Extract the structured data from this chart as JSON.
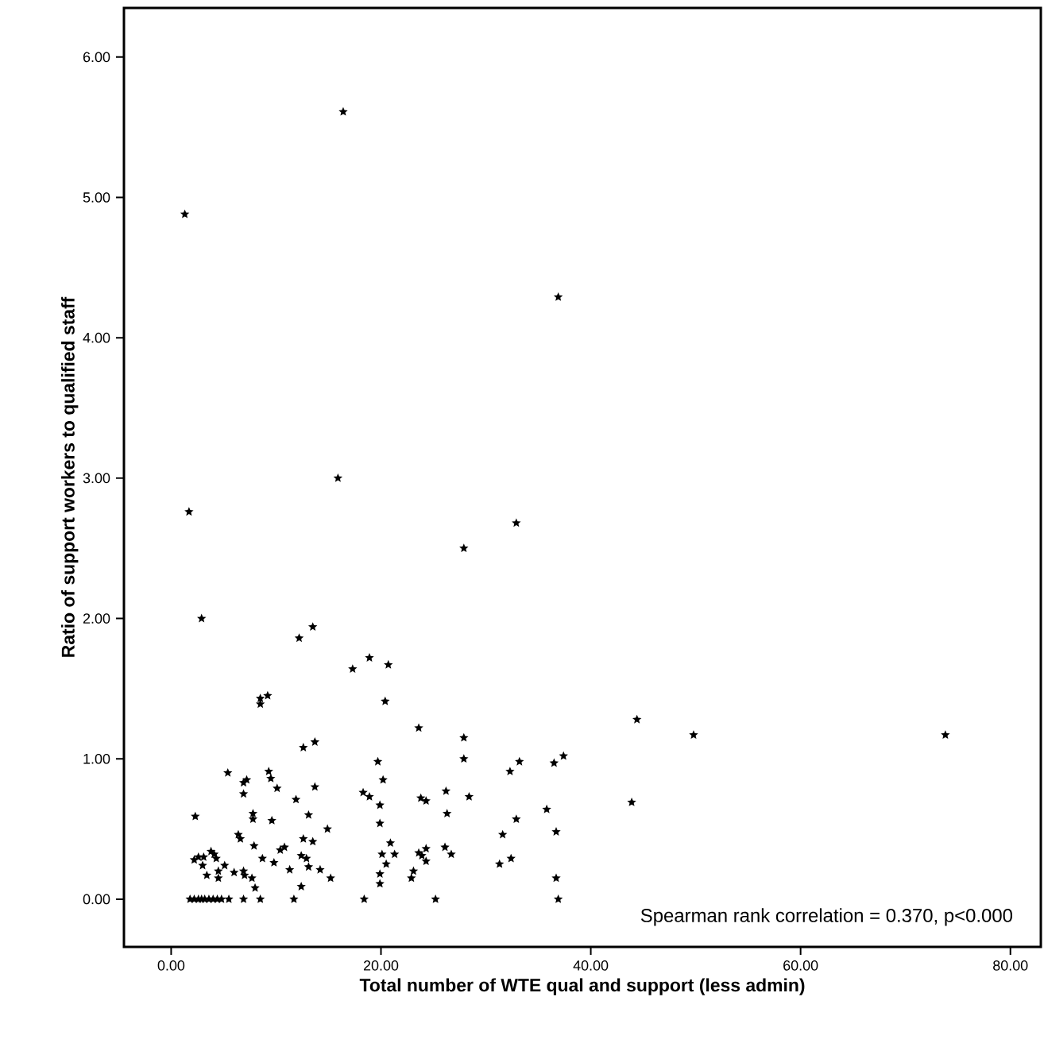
{
  "chart_data": {
    "type": "scatter",
    "xlabel": "Total number of WTE qual and support (less admin)",
    "ylabel": "Ratio of support workers to qualified staff",
    "annotations": [
      "Spearman rank correlation = 0.370, p<0.000"
    ],
    "marker": "star",
    "color": "#000000",
    "grid": false,
    "xlim": [
      -4.5,
      82.9
    ],
    "ylim": [
      -0.34,
      6.35
    ],
    "xticks": [
      {
        "value": 0,
        "label": "0.00"
      },
      {
        "value": 20,
        "label": "20.00"
      },
      {
        "value": 40,
        "label": "40.00"
      },
      {
        "value": 60,
        "label": "60.00"
      },
      {
        "value": 80,
        "label": "80.00"
      }
    ],
    "yticks": [
      {
        "value": 0,
        "label": "0.00"
      },
      {
        "value": 1,
        "label": "1.00"
      },
      {
        "value": 2,
        "label": "2.00"
      },
      {
        "value": 3,
        "label": "3.00"
      },
      {
        "value": 4,
        "label": "4.00"
      },
      {
        "value": 5,
        "label": "5.00"
      },
      {
        "value": 6,
        "label": "6.00"
      }
    ],
    "x": [
      1.3,
      16.4,
      36.9,
      15.9,
      1.7,
      32.9,
      27.9,
      17.3,
      18.9,
      20.7,
      20.4,
      23.6,
      27.9,
      27.9,
      19.7,
      20.2,
      18.3,
      18.9,
      19.9,
      19.9,
      23.8,
      24.3,
      26.2,
      26.3,
      28.4,
      32.3,
      33.2,
      36.5,
      37.4,
      44.4,
      49.8,
      43.9,
      35.8,
      32.9,
      31.6,
      36.7,
      31.3,
      32.4,
      36.7,
      36.9,
      25.2,
      18.4,
      20.9,
      20.1,
      21.3,
      20.5,
      19.9,
      19.9,
      23.6,
      24.3,
      23.9,
      24.3,
      23.1,
      22.9,
      26.1,
      26.7,
      73.8,
      2.9,
      12.2,
      13.5,
      8.5,
      9.2,
      8.5,
      12.6,
      13.7,
      5.4,
      7.2,
      6.9,
      6.9,
      9.3,
      9.5,
      10.1,
      13.7,
      11.9,
      2.3,
      7.8,
      7.8,
      9.6,
      13.1,
      14.9,
      6.4,
      6.6,
      2.2,
      2.6,
      3.1,
      3.0,
      3.4,
      3.8,
      4.1,
      4.3,
      5.1,
      4.5,
      4.5,
      6.0,
      6.9,
      7.0,
      7.7,
      8.0,
      7.9,
      8.7,
      9.8,
      10.4,
      10.8,
      11.3,
      12.4,
      12.9,
      12.6,
      13.5,
      13.1,
      14.2,
      15.2,
      12.4,
      1.8,
      2.2,
      2.6,
      2.9,
      3.2,
      3.6,
      4.0,
      4.4,
      4.8,
      5.5,
      6.9,
      8.5,
      11.7
    ],
    "values": [
      4.88,
      5.61,
      4.29,
      3.0,
      2.76,
      2.68,
      2.5,
      1.64,
      1.72,
      1.67,
      1.41,
      1.22,
      1.15,
      1.0,
      0.98,
      0.85,
      0.76,
      0.73,
      0.67,
      0.54,
      0.72,
      0.7,
      0.77,
      0.61,
      0.73,
      0.91,
      0.98,
      0.97,
      1.02,
      1.28,
      1.17,
      0.69,
      0.64,
      0.57,
      0.46,
      0.48,
      0.25,
      0.29,
      0.15,
      0,
      0,
      0,
      0.4,
      0.32,
      0.32,
      0.25,
      0.18,
      0.11,
      0.33,
      0.36,
      0.31,
      0.27,
      0.2,
      0.15,
      0.37,
      0.32,
      1.17,
      2.0,
      1.86,
      1.94,
      1.43,
      1.45,
      1.39,
      1.08,
      1.12,
      0.9,
      0.85,
      0.83,
      0.75,
      0.91,
      0.86,
      0.79,
      0.8,
      0.71,
      0.59,
      0.61,
      0.57,
      0.56,
      0.6,
      0.5,
      0.46,
      0.43,
      0.28,
      0.3,
      0.3,
      0.24,
      0.17,
      0.34,
      0.32,
      0.29,
      0.24,
      0.2,
      0.15,
      0.19,
      0.2,
      0.17,
      0.15,
      0.08,
      0.38,
      0.29,
      0.26,
      0.35,
      0.37,
      0.21,
      0.31,
      0.29,
      0.43,
      0.41,
      0.23,
      0.21,
      0.15,
      0.09,
      0,
      0,
      0,
      0,
      0,
      0,
      0,
      0,
      0,
      0,
      0,
      0,
      0
    ]
  }
}
